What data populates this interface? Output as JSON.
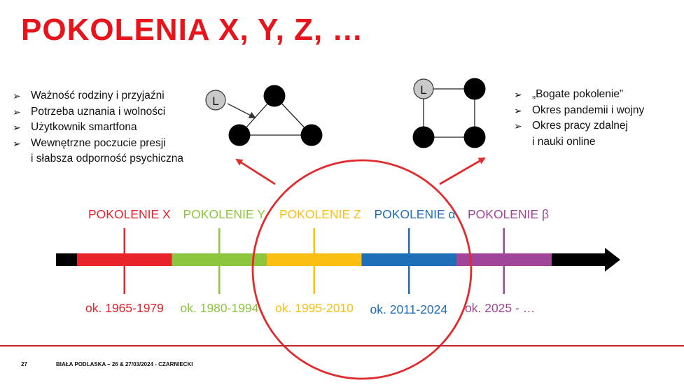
{
  "title": "POKOLENIA X, Y, Z, …",
  "left_bullets": [
    {
      "lines": [
        "Ważność rodziny i przyjaźni"
      ]
    },
    {
      "lines": [
        "Potrzeba uznania i wolności"
      ]
    },
    {
      "lines": [
        "Użytkownik smartfona"
      ]
    },
    {
      "lines": [
        "Wewnętrzne poczucie presji",
        "i słabsza odporność psychiczna"
      ]
    }
  ],
  "right_bullets": [
    {
      "lines": [
        "„Bogate pokolenie”"
      ]
    },
    {
      "lines": [
        "Okres pandemii i wojny"
      ]
    },
    {
      "lines": [
        "Okres pracy zdalnej",
        "i nauki online"
      ]
    }
  ],
  "bullet_marker": "➢",
  "node_letter": "L",
  "generations": [
    {
      "label": "POKOLENIE X",
      "range": "ok. 1965-1979",
      "color": "#e8232a"
    },
    {
      "label": "POKOLENIE Y",
      "range": "ok. 1980-1994",
      "color": "#8cc63f"
    },
    {
      "label": "POKOLENIE Z",
      "range": "ok. 1995-2010",
      "color": "#fbbf13"
    },
    {
      "label": "POKOLENIE α",
      "range": "ok. 2011-2024",
      "color": "#1f6eb8"
    },
    {
      "label": "POKOLENIE β",
      "range": "ok. 2025 - …",
      "color": "#a1459b"
    }
  ],
  "colors": {
    "title": "#e8141b",
    "circle": "#e02b2f",
    "arrow": "#000000",
    "node": "#000000",
    "node_light": "#c9c9c9"
  },
  "footer": {
    "page_number": "27",
    "text": "BIAŁA PODLASKA – 26 & 27/03/2024 - CZARNIECKI"
  }
}
